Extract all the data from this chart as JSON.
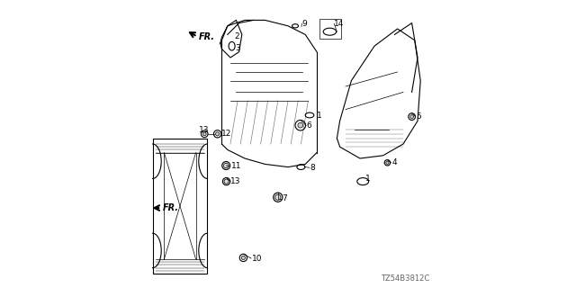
{
  "title": "",
  "diagram_code": "TZ54B3812C",
  "background_color": "#ffffff",
  "line_color": "#000000",
  "text_color": "#000000",
  "figsize": [
    6.4,
    3.2
  ],
  "dpi": 100,
  "diagram_code_fontsize": 6
}
